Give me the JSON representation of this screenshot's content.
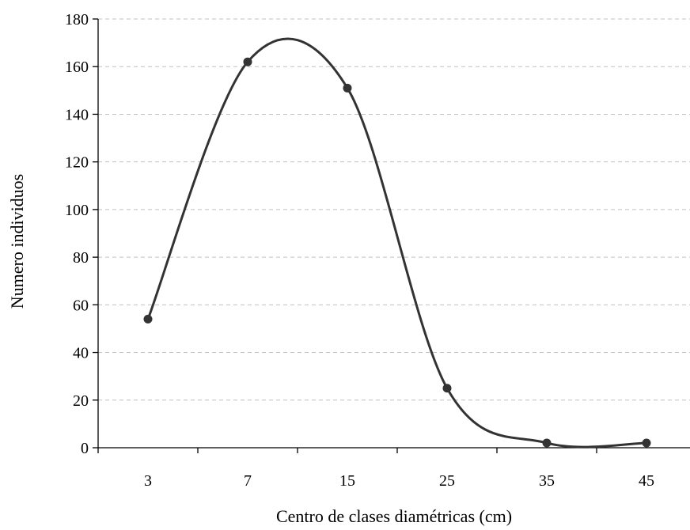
{
  "chart_data": {
    "type": "line",
    "title": "",
    "xlabel": "Centro de clases diamétricas (cm)",
    "ylabel": "Numero individuos",
    "categories": [
      "3",
      "7",
      "15",
      "25",
      "35",
      "45"
    ],
    "ylim": [
      0,
      180
    ],
    "yticks": [
      0,
      20,
      40,
      60,
      80,
      100,
      120,
      140,
      160,
      180
    ],
    "grid": "horizontal dashed",
    "legend": "none",
    "line_style": "smoothed",
    "series": [
      {
        "values": [
          54,
          162,
          151,
          25,
          2,
          2
        ]
      }
    ],
    "colors": {
      "line": "#333333",
      "marker": "#333333",
      "grid": "#c0c0c0",
      "axis": "#000000"
    }
  }
}
